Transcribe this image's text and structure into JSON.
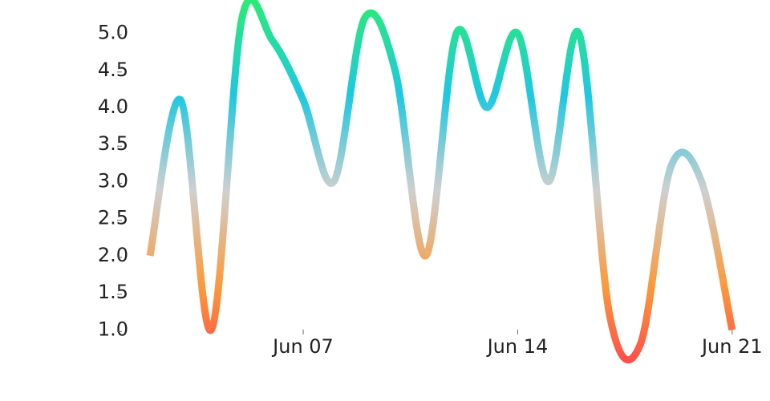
{
  "chart_data": {
    "type": "line",
    "x": [
      "Jun 02",
      "Jun 03",
      "Jun 04",
      "Jun 05",
      "Jun 06",
      "Jun 07",
      "Jun 08",
      "Jun 09",
      "Jun 10",
      "Jun 11",
      "Jun 12",
      "Jun 13",
      "Jun 14",
      "Jun 15",
      "Jun 16",
      "Jun 17",
      "Jun 18",
      "Jun 19",
      "Jun 20",
      "Jun 21"
    ],
    "values": [
      2.0,
      4.1,
      1.0,
      5.2,
      4.9,
      4.1,
      3.0,
      5.2,
      4.5,
      2.0,
      5.0,
      4.0,
      5.0,
      3.0,
      5.0,
      1.2,
      0.8,
      3.2,
      3.0,
      1.0
    ],
    "ylim": [
      0.3,
      5.45
    ],
    "yticks": [
      {
        "value": 1,
        "label": "1.0"
      },
      1.5,
      {
        "value": 2,
        "label": "2.0"
      },
      2.5,
      {
        "value": 3,
        "label": "3.0"
      },
      3.5,
      {
        "value": 4,
        "label": "4.0"
      },
      4.5,
      {
        "value": 5,
        "label": "5.0"
      }
    ],
    "xticks": [
      "Jun 07",
      "Jun 14",
      "Jun 21"
    ],
    "colors": [
      "#ff3b4f",
      "#fb9a3a",
      "#cfcfcf",
      "#1ec8e2",
      "#2aeb74"
    ]
  }
}
